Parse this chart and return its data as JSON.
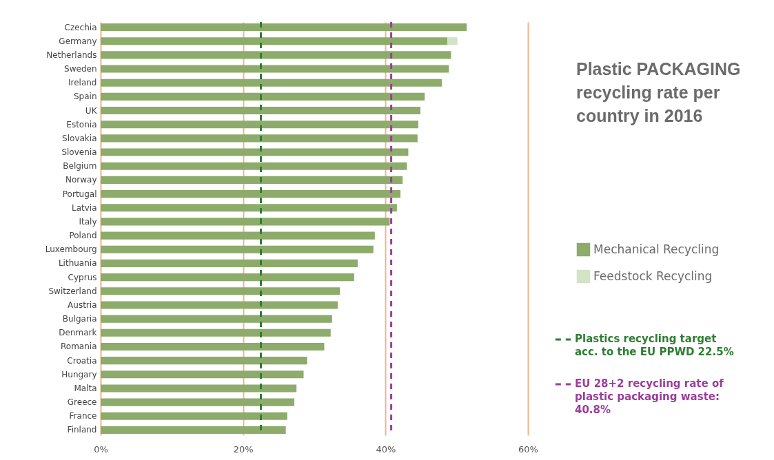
{
  "chart_data": {
    "type": "bar",
    "orientation": "horizontal",
    "stacked": true,
    "title": "Plastic PACKAGING recycling rate per country in 2016",
    "categories": [
      "Czechia",
      "Germany",
      "Netherlands",
      "Sweden",
      "Ireland",
      "Spain",
      "UK",
      "Estonia",
      "Slovakia",
      "Slovenia",
      "Belgium",
      "Norway",
      "Portugal",
      "Latvia",
      "Italy",
      "Poland",
      "Luxembourg",
      "Lithuania",
      "Cyprus",
      "Switzerland",
      "Austria",
      "Bulgaria",
      "Denmark",
      "Romania",
      "Croatia",
      "Hungary",
      "Malta",
      "Greece",
      "France",
      "Finland"
    ],
    "series": [
      {
        "name": "Mechanical Recycling",
        "color": "#8dab6a",
        "values": [
          51.4,
          48.7,
          49.2,
          48.9,
          47.9,
          45.5,
          44.9,
          44.6,
          44.5,
          43.2,
          43.0,
          42.4,
          42.1,
          41.6,
          40.6,
          38.5,
          38.3,
          36.1,
          35.6,
          33.6,
          33.3,
          32.5,
          32.3,
          31.4,
          29.0,
          28.5,
          27.5,
          27.2,
          26.2,
          26.0
        ]
      },
      {
        "name": "Feedstock Recycling",
        "color": "#d3e3c5",
        "values": [
          null,
          1.4,
          null,
          null,
          null,
          null,
          null,
          null,
          null,
          null,
          null,
          null,
          null,
          null,
          null,
          null,
          null,
          null,
          null,
          null,
          null,
          null,
          null,
          null,
          null,
          null,
          null,
          null,
          null,
          null
        ]
      }
    ],
    "xlim": [
      0,
      60
    ],
    "xticks": [
      {
        "value": 0,
        "label": "0%"
      },
      {
        "value": 20,
        "label": "20%"
      },
      {
        "value": 40,
        "label": "40%"
      },
      {
        "value": 60,
        "label": "60%"
      }
    ],
    "grid": "x",
    "legend": "right",
    "ref_lines": [
      {
        "axis": "x",
        "value": 22.5,
        "label": "Plastics recycling target acc. to the EU PPWD 22.5%",
        "color": "#2e7d32",
        "line_style": "dashed"
      },
      {
        "axis": "x",
        "value": 40.8,
        "label": "EU 28+2 recycling rate of plastic packaging waste: 40.8%",
        "color": "#9c3c9c",
        "line_style": "dashed"
      }
    ]
  }
}
